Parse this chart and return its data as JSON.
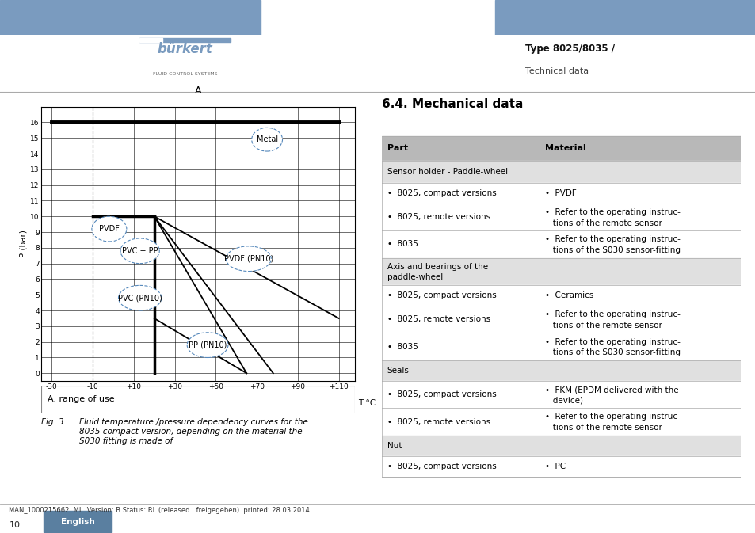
{
  "bg_color": "#ffffff",
  "header_bar_color": "#7a9bbf",
  "header_text1": "Type 8025/8035 /",
  "header_text2": "Technical data",
  "burkert_text": "bürkert",
  "burkert_sub": "FLUID CONTROL SYSTEMS",
  "footer_text": "MAN_1000215662  ML  Version: B Status: RL (released | freigegeben)  printed: 28.03.2014",
  "footer_page": "10",
  "footer_lang": "English",
  "footer_lang_bg": "#5a7fa0",
  "section_title": "6.4.",
  "section_title2": "Mechanical data",
  "chart_title_A": "A",
  "chart_ylabel": "P (bar)",
  "chart_xlabel": "T °C",
  "chart_note": "A: range of use",
  "xticks": [
    -30,
    -10,
    10,
    30,
    50,
    70,
    90,
    110
  ],
  "xtick_labels": [
    "-30",
    "-10",
    "+10",
    "+30",
    "+50",
    "+70",
    "+90",
    "+110"
  ],
  "yticks": [
    0,
    1,
    2,
    3,
    4,
    5,
    6,
    7,
    8,
    9,
    10,
    11,
    12,
    13,
    14,
    15,
    16
  ],
  "xlim": [
    -35,
    118
  ],
  "ylim": [
    -0.5,
    17.0
  ],
  "label_metal": "Metal",
  "label_pvdf": "PVDF",
  "label_pvc_pp": "PVC + PP",
  "label_pvdf_pn10": "PVDF (PN10)",
  "label_pvc_pn10": "PVC (PN10)",
  "label_pp_pn10": "PP (PN10)",
  "table_header_bg": "#b8b8b8",
  "table_row_bg_gray": "#e0e0e0",
  "table_row_bg_white": "#ffffff",
  "table_col1_header": "Part",
  "table_col2_header": "Material",
  "col_split": 0.44
}
